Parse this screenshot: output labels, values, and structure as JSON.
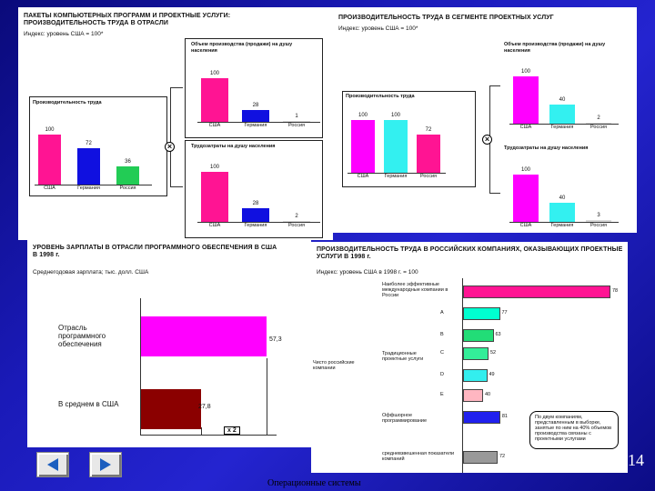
{
  "panel1": {
    "title": "ПАКЕТЫ КОМПЬЮТЕРНЫХ ПРОГРАММ И ПРОЕКТНЫЕ УСЛУГИ: ПРОИЗВОДИТЕЛЬНОСТЬ ТРУДА В ОТРАСЛИ",
    "subtitle": "Индекс: уровень США = 100*",
    "main_chart": {
      "label": "Производительность труда",
      "categories": [
        "США",
        "Германия",
        "Россия"
      ],
      "values": [
        100,
        72,
        36
      ],
      "colors": [
        "#ff1493",
        "#1010e0",
        "#22cc55"
      ]
    },
    "sales_chart": {
      "label": "Объем производства (продажи) на душу населения",
      "categories": [
        "США",
        "Германия",
        "Россия"
      ],
      "values": [
        100,
        28,
        1
      ],
      "colors": [
        "#ff1493",
        "#1010e0",
        "#d8d8d8"
      ]
    },
    "labor_chart": {
      "label": "Трудозатраты на душу населения",
      "categories": [
        "США",
        "Германия",
        "Россия"
      ],
      "values": [
        100,
        28,
        2
      ],
      "colors": [
        "#ff1493",
        "#1010e0",
        "#d8d8d8"
      ]
    }
  },
  "panel2": {
    "title": "ПРОИЗВОДИТЕЛЬНОСТЬ ТРУДА В СЕГМЕНТЕ ПРОЕКТНЫХ УСЛУГ",
    "subtitle": "Индекс: уровень США = 100*",
    "main_chart": {
      "label": "Производительность труда",
      "categories": [
        "США",
        "Германия",
        "Россия"
      ],
      "values": [
        100,
        100,
        72
      ],
      "colors": [
        "#ff00ff",
        "#33f0f0",
        "#ff1493"
      ]
    },
    "sales_chart": {
      "label": "Объем производства (продажи) на душу населения",
      "categories": [
        "США",
        "Германия",
        "Россия"
      ],
      "values": [
        100,
        40,
        2
      ],
      "colors": [
        "#ff00ff",
        "#33f0f0",
        "#d8d8d8"
      ]
    },
    "labor_chart": {
      "label": "Трудозатраты на душу населения",
      "categories": [
        "США",
        "Германия",
        "Россия"
      ],
      "values": [
        100,
        40,
        3
      ],
      "colors": [
        "#ff00ff",
        "#33f0f0",
        "#d8d8d8"
      ]
    }
  },
  "panel3": {
    "title": "УРОВЕНЬ ЗАРПЛАТЫ В ОТРАСЛИ ПРОГРАММНОГО ОБЕСПЕЧЕНИЯ В США В 1998 г.",
    "subtitle": "Среднегодовая зарплата; тыс. долл. США",
    "bars": [
      {
        "label": "Отрасль программного обеспечения",
        "value": "57,3",
        "color": "#ff00ff"
      },
      {
        "label": "В среднем в США",
        "value": "27,8",
        "color": "#8b0000"
      }
    ],
    "annotation": "x 2"
  },
  "panel4": {
    "title": "ПРОИЗВОДИТЕЛЬНОСТЬ ТРУДА В РОССИЙСКИХ КОМПАНИЯХ, ОКАЗЫВАЮЩИХ ПРОЕКТНЫЕ УСЛУГИ В 1998 г.",
    "subtitle": "Индекс: уровень США в 1998 г. = 100",
    "top_label": "Наиболее эффективные международные компании в России",
    "group1_label": "Традиционные проектные услуги",
    "group2_label": "Оффшорное программирование",
    "left_label": "Чисто российские компании",
    "bottom_label": "средневзвешенная показатели компаний",
    "rows": [
      {
        "letter": "",
        "value": "78",
        "color": "#ff1493"
      },
      {
        "letter": "A",
        "value": "77",
        "color": "#00ffd0"
      },
      {
        "letter": "B",
        "value": "63",
        "color": "#22dd77"
      },
      {
        "letter": "C",
        "value": "52",
        "color": "#33ee99"
      },
      {
        "letter": "D",
        "value": "49",
        "color": "#33eeee"
      },
      {
        "letter": "E",
        "value": "40",
        "color": "#ffb6c1"
      },
      {
        "letter": "",
        "value": "81",
        "color": "#2020ee"
      },
      {
        "letter": "",
        "value": "72",
        "color": "#999999"
      }
    ],
    "callout": "По двум компаниям, представленным в выборке, занятые по ним на 40% объемов производства связаны с проектными услугами"
  },
  "footer": {
    "text": "Операционные системы",
    "page_number": "14"
  },
  "nav": {
    "back_label": "назад",
    "forward_label": "вперед"
  }
}
